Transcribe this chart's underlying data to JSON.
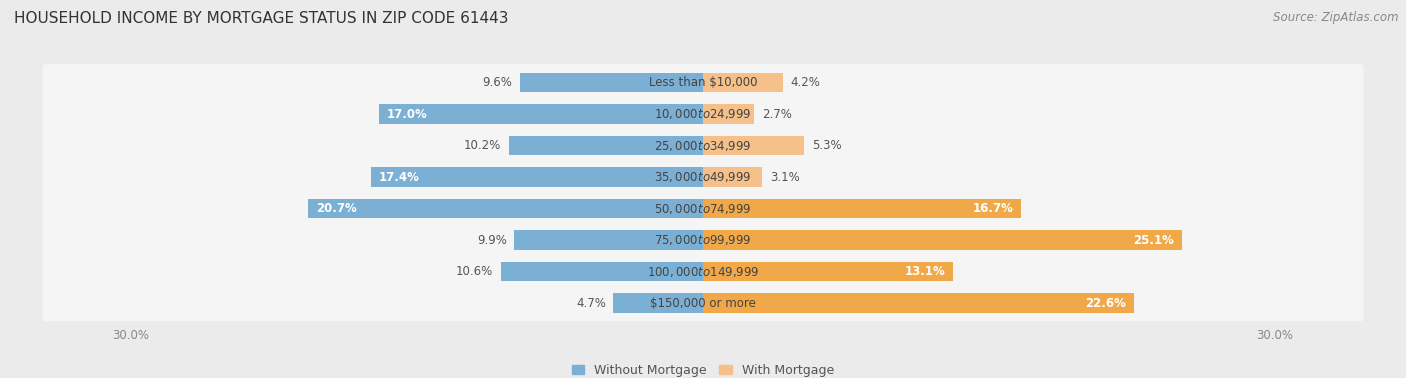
{
  "title": "HOUSEHOLD INCOME BY MORTGAGE STATUS IN ZIP CODE 61443",
  "source": "Source: ZipAtlas.com",
  "categories": [
    "Less than $10,000",
    "$10,000 to $24,999",
    "$25,000 to $34,999",
    "$35,000 to $49,999",
    "$50,000 to $74,999",
    "$75,000 to $99,999",
    "$100,000 to $149,999",
    "$150,000 or more"
  ],
  "without_mortgage": [
    9.6,
    17.0,
    10.2,
    17.4,
    20.7,
    9.9,
    10.6,
    4.7
  ],
  "with_mortgage": [
    4.2,
    2.7,
    5.3,
    3.1,
    16.7,
    25.1,
    13.1,
    22.6
  ],
  "color_without": "#7BAFD4",
  "color_with": "#F5C08A",
  "color_with_large": "#F0A848",
  "axis_limit": 30.0,
  "bg_color": "#EBEBEB",
  "row_bg_color": "#F5F5F5",
  "title_fontsize": 11,
  "label_fontsize": 8.5,
  "source_fontsize": 8.5,
  "legend_fontsize": 9,
  "axis_label_fontsize": 8.5,
  "inside_label_threshold": 13.0
}
